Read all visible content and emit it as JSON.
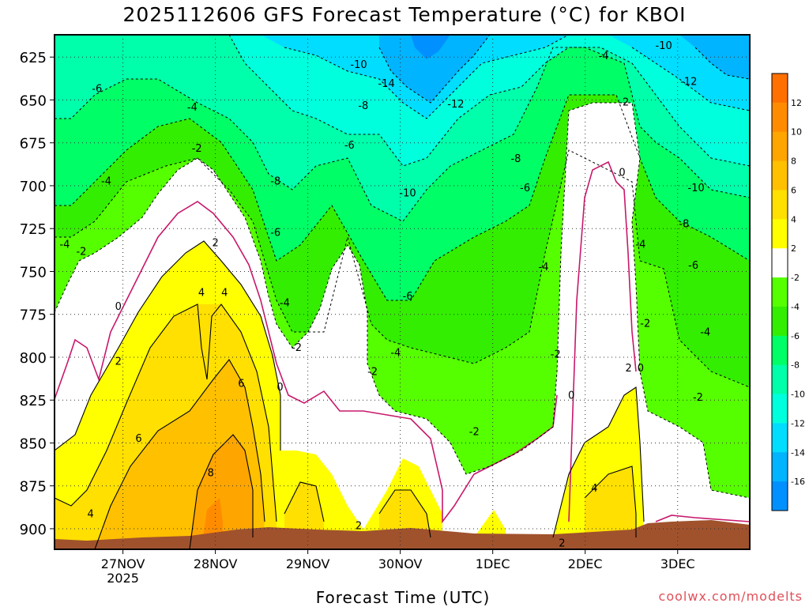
{
  "chart_data": {
    "type": "heatmap",
    "title": "2025112606 GFS Forecast Temperature (°C) for KBOI",
    "xlabel": "Forecast Time (UTC)",
    "ylabel": "",
    "credit": "coolwx.com/modelts",
    "x_ticks": [
      "27NOV",
      "28NOV",
      "29NOV",
      "30NOV",
      "1DEC",
      "2DEC",
      "3DEC"
    ],
    "x_year": "2025",
    "y_ticks": [
      625,
      650,
      675,
      700,
      725,
      750,
      775,
      800,
      825,
      850,
      875,
      900
    ],
    "ylim": [
      912,
      612
    ],
    "colorbar": {
      "levels": [
        12,
        10,
        8,
        6,
        4,
        2,
        -2,
        -4,
        -6,
        -8,
        -10,
        -12,
        -14,
        -16
      ],
      "colors": [
        "#ff7000",
        "#ff8c00",
        "#ffa500",
        "#ffc000",
        "#ffe000",
        "#ffff00",
        "#ffffff",
        "#55ff00",
        "#33ee00",
        "#00ff66",
        "#00ffaa",
        "#00ffdd",
        "#00ddff",
        "#00b4ff",
        "#0090ff"
      ]
    },
    "contour_labels": [
      {
        "text": "-6",
        "x": 26.72,
        "p": 643
      },
      {
        "text": "-4",
        "x": 26.82,
        "p": 697
      },
      {
        "text": "-4",
        "x": 26.37,
        "p": 734
      },
      {
        "text": "-2",
        "x": 26.55,
        "p": 738
      },
      {
        "text": "0",
        "x": 26.95,
        "p": 770
      },
      {
        "text": "2",
        "x": 26.95,
        "p": 802
      },
      {
        "text": "4",
        "x": 26.65,
        "p": 891
      },
      {
        "text": "6",
        "x": 27.17,
        "p": 847
      },
      {
        "text": "-4",
        "x": 27.75,
        "p": 654
      },
      {
        "text": "-2",
        "x": 27.8,
        "p": 678
      },
      {
        "text": "2",
        "x": 28.0,
        "p": 733
      },
      {
        "text": "4",
        "x": 27.85,
        "p": 762
      },
      {
        "text": "4",
        "x": 28.1,
        "p": 762
      },
      {
        "text": "6",
        "x": 28.28,
        "p": 815
      },
      {
        "text": "8",
        "x": 27.95,
        "p": 867
      },
      {
        "text": "-8",
        "x": 28.65,
        "p": 697
      },
      {
        "text": "-6",
        "x": 28.65,
        "p": 727
      },
      {
        "text": "-4",
        "x": 28.75,
        "p": 768
      },
      {
        "text": "-2",
        "x": 28.88,
        "p": 794
      },
      {
        "text": "0",
        "x": 28.7,
        "p": 817
      },
      {
        "text": "-10",
        "x": 29.55,
        "p": 629
      },
      {
        "text": "-14",
        "x": 29.85,
        "p": 640
      },
      {
        "text": "-8",
        "x": 29.6,
        "p": 653
      },
      {
        "text": "-6",
        "x": 29.45,
        "p": 676
      },
      {
        "text": "-10",
        "x": 30.08,
        "p": 704
      },
      {
        "text": "-6",
        "x": 30.08,
        "p": 764
      },
      {
        "text": "-4",
        "x": 29.95,
        "p": 797
      },
      {
        "text": "-2",
        "x": 29.7,
        "p": 808
      },
      {
        "text": "-2",
        "x": 30.8,
        "p": 843
      },
      {
        "text": "2",
        "x": 29.55,
        "p": 898
      },
      {
        "text": "-12",
        "x": 30.6,
        "p": 652
      },
      {
        "text": "-8",
        "x": 31.25,
        "p": 684
      },
      {
        "text": "-6",
        "x": 31.35,
        "p": 701
      },
      {
        "text": "-4",
        "x": 31.55,
        "p": 747
      },
      {
        "text": "-2",
        "x": 31.68,
        "p": 798
      },
      {
        "text": "0",
        "x": 31.85,
        "p": 822
      },
      {
        "text": "2",
        "x": 31.75,
        "p": 908
      },
      {
        "text": "-4",
        "x": 32.2,
        "p": 624
      },
      {
        "text": "-2",
        "x": 32.42,
        "p": 651
      },
      {
        "text": "0",
        "x": 32.4,
        "p": 692
      },
      {
        "text": "-4",
        "x": 32.6,
        "p": 734
      },
      {
        "text": "-2",
        "x": 32.65,
        "p": 780
      },
      {
        "text": "2",
        "x": 32.47,
        "p": 806
      },
      {
        "text": "0",
        "x": 32.6,
        "p": 806
      },
      {
        "text": "4",
        "x": 32.1,
        "p": 876
      },
      {
        "text": "-10",
        "x": 32.85,
        "p": 618
      },
      {
        "text": "-12",
        "x": 33.12,
        "p": 639
      },
      {
        "text": "-10",
        "x": 33.2,
        "p": 701
      },
      {
        "text": "-8",
        "x": 33.07,
        "p": 722
      },
      {
        "text": "-6",
        "x": 33.17,
        "p": 746
      },
      {
        "text": "-4",
        "x": 33.3,
        "p": 785
      },
      {
        "text": "-2",
        "x": 33.22,
        "p": 823
      }
    ]
  }
}
